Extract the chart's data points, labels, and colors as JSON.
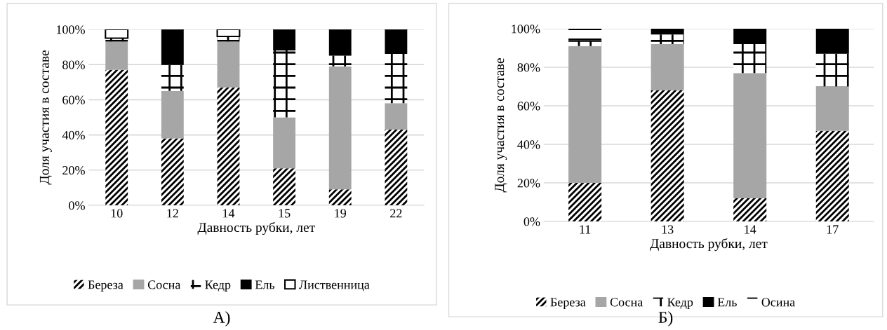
{
  "chart_data": [
    {
      "type": "bar",
      "stacked": true,
      "categories": [
        "10",
        "12",
        "14",
        "15",
        "19",
        "22"
      ],
      "xlabel": "Давность рубки, лет",
      "ylabel": "Доля участия в составе",
      "ylim": [
        0,
        100
      ],
      "yticks": [
        {
          "value": 0,
          "label": "0%"
        },
        {
          "value": 20,
          "label": "20%"
        },
        {
          "value": 40,
          "label": "40%"
        },
        {
          "value": 60,
          "label": "60%"
        },
        {
          "value": 80,
          "label": "80%"
        },
        {
          "value": 100,
          "label": "100%"
        }
      ],
      "grid": "y",
      "legend": "bottom",
      "annotations": [
        "А)"
      ],
      "series": [
        {
          "name": "Береза",
          "color": "#000000",
          "values": [
            77,
            38,
            67,
            21,
            9,
            43
          ]
        },
        {
          "name": "Сосна",
          "color": "#a6a6a6",
          "values": [
            16,
            27,
            26,
            29,
            70,
            15
          ]
        },
        {
          "name": "Кедр",
          "color": "#000000",
          "values": [
            2,
            15,
            3,
            38,
            6,
            28
          ]
        },
        {
          "name": "Ель",
          "color": "#000000",
          "values": [
            0,
            20,
            0,
            12,
            15,
            14
          ]
        },
        {
          "name": "Лиственница",
          "color": "#000000",
          "values": [
            5,
            0,
            4,
            0,
            0,
            0
          ]
        }
      ]
    },
    {
      "type": "bar",
      "stacked": true,
      "categories": [
        "11",
        "13",
        "14",
        "17"
      ],
      "xlabel": "Давность рубки, лет",
      "ylabel": "Доля участия в составе",
      "ylim": [
        0,
        100
      ],
      "yticks": [
        {
          "value": 0,
          "label": "0%"
        },
        {
          "value": 20,
          "label": "20%"
        },
        {
          "value": 40,
          "label": "40%"
        },
        {
          "value": 60,
          "label": "60%"
        },
        {
          "value": 80,
          "label": "80%"
        },
        {
          "value": 100,
          "label": "100%"
        }
      ],
      "grid": "y",
      "legend": "bottom",
      "annotations": [
        "Б)"
      ],
      "series": [
        {
          "name": "Береза",
          "color": "#000000",
          "values": [
            20,
            68,
            12,
            47
          ]
        },
        {
          "name": "Сосна",
          "color": "#a6a6a6",
          "values": [
            71,
            24,
            65,
            23
          ]
        },
        {
          "name": "Кедр",
          "color": "#000000",
          "values": [
            3,
            5,
            15,
            17
          ]
        },
        {
          "name": "Ель",
          "color": "#000000",
          "values": [
            1,
            3,
            8,
            13
          ]
        },
        {
          "name": "Осина",
          "color": "#000000",
          "values": [
            5,
            0,
            0,
            0
          ]
        }
      ]
    }
  ]
}
